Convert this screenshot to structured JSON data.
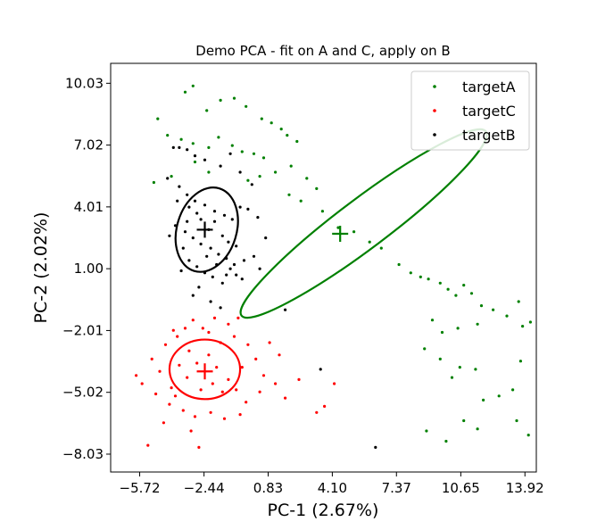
{
  "chart_data": {
    "type": "scatter",
    "title": "Demo PCA - fit on A and C, apply on B",
    "xlabel": "PC-1 (2.67%)",
    "ylabel": "PC-2 (2.02%)",
    "xlim": [
      -7.2,
      14.5
    ],
    "ylim": [
      -8.9,
      11.0
    ],
    "xticks": [
      "−5.72",
      "−2.44",
      "0.83",
      "4.10",
      "7.37",
      "10.65",
      "13.92"
    ],
    "xtick_values": [
      -5.72,
      -2.44,
      0.83,
      4.1,
      7.37,
      10.65,
      13.92
    ],
    "yticks": [
      "−8.03",
      "−5.02",
      "−2.01",
      "1.00",
      "4.01",
      "7.02",
      "10.03"
    ],
    "ytick_values": [
      -8.03,
      -5.02,
      -2.01,
      1.0,
      4.01,
      7.02,
      10.03
    ],
    "legend_position": "top-right",
    "grid": false,
    "series": [
      {
        "name": "targetA",
        "color": "#008000",
        "center": [
          4.5,
          2.7
        ],
        "ellipse": {
          "cx": 5.7,
          "cy": 3.2,
          "rx": 7.8,
          "ry": 1.2,
          "angle_deg": -37
        },
        "points": [
          [
            -3.4,
            9.6
          ],
          [
            -3.0,
            9.9
          ],
          [
            -2.3,
            8.7
          ],
          [
            -1.6,
            9.2
          ],
          [
            -0.9,
            9.3
          ],
          [
            -0.3,
            8.9
          ],
          [
            0.5,
            8.3
          ],
          [
            1.0,
            8.1
          ],
          [
            1.5,
            7.8
          ],
          [
            1.8,
            7.5
          ],
          [
            2.3,
            7.2
          ],
          [
            -4.8,
            8.3
          ],
          [
            -4.3,
            7.5
          ],
          [
            -3.6,
            7.3
          ],
          [
            -3.0,
            7.1
          ],
          [
            -2.2,
            6.9
          ],
          [
            -1.7,
            7.4
          ],
          [
            -1.0,
            7.0
          ],
          [
            -0.5,
            6.7
          ],
          [
            0.1,
            6.6
          ],
          [
            0.6,
            6.4
          ],
          [
            -5.0,
            5.2
          ],
          [
            -4.1,
            5.5
          ],
          [
            -2.9,
            6.2
          ],
          [
            -2.2,
            5.7
          ],
          [
            -0.2,
            5.3
          ],
          [
            0.4,
            5.5
          ],
          [
            1.2,
            5.7
          ],
          [
            2.0,
            6.0
          ],
          [
            2.8,
            5.4
          ],
          [
            3.3,
            4.9
          ],
          [
            1.9,
            4.6
          ],
          [
            2.5,
            4.3
          ],
          [
            3.6,
            3.8
          ],
          [
            4.4,
            3.0
          ],
          [
            5.2,
            2.8
          ],
          [
            6.0,
            2.3
          ],
          [
            6.6,
            2.0
          ],
          [
            7.5,
            1.2
          ],
          [
            8.1,
            0.8
          ],
          [
            8.6,
            0.6
          ],
          [
            9.0,
            0.5
          ],
          [
            9.6,
            0.3
          ],
          [
            10.0,
            0.0
          ],
          [
            10.4,
            -0.3
          ],
          [
            10.8,
            0.2
          ],
          [
            11.2,
            -0.2
          ],
          [
            11.7,
            -0.8
          ],
          [
            12.3,
            -1.0
          ],
          [
            13.0,
            -1.3
          ],
          [
            13.6,
            -0.6
          ],
          [
            13.8,
            -1.8
          ],
          [
            14.2,
            -1.6
          ],
          [
            11.5,
            -1.7
          ],
          [
            10.5,
            -1.9
          ],
          [
            9.7,
            -2.1
          ],
          [
            9.2,
            -1.5
          ],
          [
            8.8,
            -2.9
          ],
          [
            9.6,
            -3.4
          ],
          [
            10.2,
            -4.3
          ],
          [
            10.6,
            -3.8
          ],
          [
            11.4,
            -3.9
          ],
          [
            11.8,
            -5.4
          ],
          [
            12.6,
            -5.2
          ],
          [
            13.3,
            -4.9
          ],
          [
            13.7,
            -3.5
          ],
          [
            10.8,
            -6.4
          ],
          [
            11.5,
            -6.8
          ],
          [
            9.9,
            -7.4
          ],
          [
            8.9,
            -6.9
          ],
          [
            13.5,
            -6.4
          ],
          [
            14.1,
            -7.1
          ]
        ]
      },
      {
        "name": "targetC",
        "color": "#ff0000",
        "center": [
          -2.4,
          -4.0
        ],
        "ellipse": {
          "cx": -2.4,
          "cy": -3.9,
          "rx": 1.8,
          "ry": 1.45,
          "angle_deg": 0
        },
        "points": [
          [
            -3.0,
            -1.5
          ],
          [
            -2.5,
            -1.9
          ],
          [
            -1.9,
            -1.4
          ],
          [
            -1.2,
            -1.7
          ],
          [
            -0.7,
            -1.4
          ],
          [
            -3.8,
            -2.3
          ],
          [
            -4.4,
            -2.7
          ],
          [
            -5.1,
            -3.4
          ],
          [
            -4.7,
            -4.0
          ],
          [
            -5.6,
            -4.6
          ],
          [
            -5.9,
            -4.2
          ],
          [
            -4.9,
            -5.1
          ],
          [
            -4.2,
            -5.6
          ],
          [
            -3.5,
            -5.9
          ],
          [
            -2.9,
            -6.2
          ],
          [
            -2.1,
            -6.0
          ],
          [
            -1.4,
            -6.3
          ],
          [
            -0.6,
            -6.1
          ],
          [
            -0.3,
            -5.5
          ],
          [
            0.4,
            -5.0
          ],
          [
            0.6,
            -4.2
          ],
          [
            0.2,
            -3.4
          ],
          [
            -0.2,
            -2.7
          ],
          [
            -0.9,
            -2.3
          ],
          [
            -1.6,
            -2.6
          ],
          [
            -3.2,
            -3.0
          ],
          [
            -2.8,
            -3.6
          ],
          [
            -2.2,
            -3.2
          ],
          [
            -1.8,
            -3.8
          ],
          [
            -1.2,
            -4.4
          ],
          [
            -2.0,
            -4.6
          ],
          [
            -2.6,
            -4.9
          ],
          [
            -3.3,
            -4.3
          ],
          [
            -3.7,
            -3.7
          ],
          [
            -1.5,
            -5.0
          ],
          [
            -0.8,
            -4.9
          ],
          [
            -0.5,
            -3.8
          ],
          [
            -4.5,
            -6.5
          ],
          [
            -3.1,
            -6.9
          ],
          [
            -5.3,
            -7.6
          ],
          [
            -2.7,
            -7.7
          ],
          [
            0.9,
            -2.6
          ],
          [
            1.4,
            -3.2
          ],
          [
            1.2,
            -4.6
          ],
          [
            1.7,
            -5.3
          ],
          [
            2.4,
            -4.4
          ],
          [
            4.2,
            -4.6
          ],
          [
            3.7,
            -5.7
          ],
          [
            3.3,
            -6.0
          ],
          [
            -4.0,
            -2.0
          ],
          [
            -3.4,
            -1.9
          ],
          [
            -2.2,
            -2.1
          ],
          [
            -4.1,
            -4.8
          ],
          [
            -3.9,
            -5.2
          ]
        ]
      },
      {
        "name": "targetB",
        "color": "#000000",
        "center": [
          -2.4,
          2.9
        ],
        "ellipse": {
          "cx": -2.3,
          "cy": 2.9,
          "rx": 2.2,
          "ry": 1.45,
          "angle_deg": -73
        },
        "points": [
          [
            -4.0,
            6.9
          ],
          [
            -3.7,
            6.9
          ],
          [
            -3.3,
            6.8
          ],
          [
            -2.9,
            6.5
          ],
          [
            -2.4,
            6.3
          ],
          [
            -1.6,
            6.0
          ],
          [
            -1.1,
            6.6
          ],
          [
            -0.6,
            5.7
          ],
          [
            0.0,
            5.1
          ],
          [
            -4.3,
            5.4
          ],
          [
            -3.7,
            5.0
          ],
          [
            -3.3,
            4.6
          ],
          [
            -2.9,
            4.3
          ],
          [
            -2.4,
            4.1
          ],
          [
            -1.9,
            3.8
          ],
          [
            -1.4,
            3.6
          ],
          [
            -1.0,
            3.4
          ],
          [
            -0.6,
            4.0
          ],
          [
            -0.2,
            3.9
          ],
          [
            0.3,
            3.5
          ],
          [
            0.7,
            2.5
          ],
          [
            -3.9,
            3.1
          ],
          [
            -3.4,
            2.8
          ],
          [
            -3.0,
            2.5
          ],
          [
            -2.6,
            2.2
          ],
          [
            -2.1,
            2.0
          ],
          [
            -1.7,
            1.7
          ],
          [
            -1.3,
            1.5
          ],
          [
            -0.9,
            1.2
          ],
          [
            -0.4,
            1.4
          ],
          [
            0.1,
            1.6
          ],
          [
            0.4,
            1.0
          ],
          [
            -3.2,
            1.4
          ],
          [
            -2.8,
            1.1
          ],
          [
            -2.4,
            0.8
          ],
          [
            -2.0,
            0.6
          ],
          [
            -1.5,
            0.3
          ],
          [
            -1.1,
            1.0
          ],
          [
            -0.5,
            0.5
          ],
          [
            -3.6,
            0.9
          ],
          [
            -2.7,
            0.1
          ],
          [
            -3.0,
            -0.3
          ],
          [
            -2.1,
            -0.6
          ],
          [
            -1.6,
            -0.9
          ],
          [
            -3.2,
            4.0
          ],
          [
            -2.6,
            3.4
          ],
          [
            -2.2,
            2.9
          ],
          [
            -1.9,
            3.3
          ],
          [
            -2.8,
            3.7
          ],
          [
            -3.3,
            3.3
          ],
          [
            -1.5,
            2.6
          ],
          [
            -1.2,
            2.3
          ],
          [
            -0.8,
            2.1
          ],
          [
            -3.5,
            2.0
          ],
          [
            -2.3,
            1.6
          ],
          [
            -1.8,
            1.2
          ],
          [
            -1.3,
            0.7
          ],
          [
            -3.8,
            4.3
          ],
          [
            -4.2,
            2.6
          ],
          [
            -0.8,
            0.7
          ],
          [
            1.7,
            -1.0
          ],
          [
            3.5,
            -3.9
          ],
          [
            6.3,
            -7.7
          ]
        ]
      }
    ]
  }
}
